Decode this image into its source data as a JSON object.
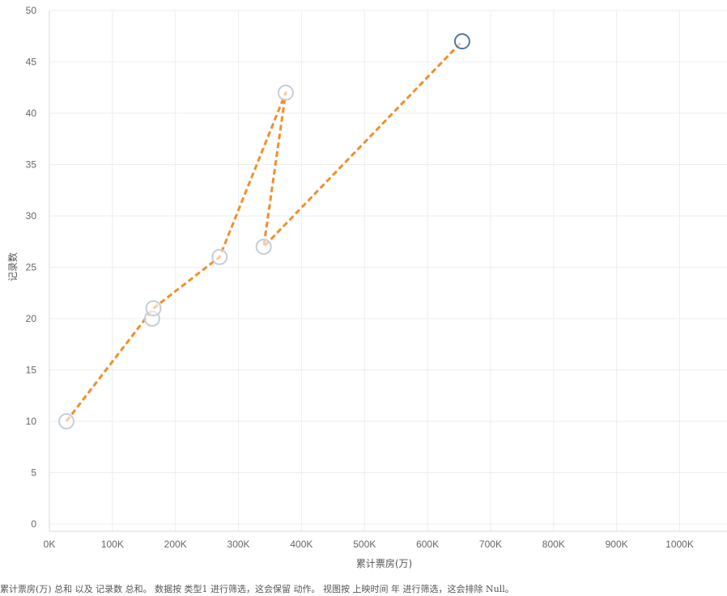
{
  "chart_data": {
    "type": "scatter",
    "xlabel": "累计票房(万)",
    "ylabel": "记录数",
    "xlim": [
      0,
      1070000
    ],
    "ylim": [
      0,
      50
    ],
    "x_ticks": [
      0,
      100000,
      200000,
      300000,
      400000,
      500000,
      600000,
      700000,
      800000,
      900000,
      1000000
    ],
    "x_tick_labels": [
      "0K",
      "100K",
      "200K",
      "300K",
      "400K",
      "500K",
      "600K",
      "700K",
      "800K",
      "900K",
      "1000K"
    ],
    "y_ticks": [
      0,
      5,
      10,
      15,
      20,
      25,
      30,
      35,
      40,
      45,
      50
    ],
    "y_tick_labels": [
      "0",
      "5",
      "10",
      "15",
      "20",
      "25",
      "30",
      "35",
      "40",
      "45",
      "50"
    ],
    "grid": true,
    "points": [
      {
        "x": 27000,
        "y": 10,
        "highlighted": false
      },
      {
        "x": 163000,
        "y": 20,
        "highlighted": false
      },
      {
        "x": 165000,
        "y": 21,
        "highlighted": false
      },
      {
        "x": 270000,
        "y": 26,
        "highlighted": false
      },
      {
        "x": 375000,
        "y": 42,
        "highlighted": false
      },
      {
        "x": 340000,
        "y": 27,
        "highlighted": false
      },
      {
        "x": 655000,
        "y": 47,
        "highlighted": true
      }
    ],
    "trail_path": [
      [
        27000,
        10
      ],
      [
        165000,
        21
      ],
      [
        270000,
        26
      ],
      [
        375000,
        42
      ],
      [
        340000,
        27
      ],
      [
        655000,
        47
      ]
    ],
    "colors": {
      "point_default": "#c5cdd8",
      "point_highlight": "#4e79a7",
      "trail": "#f28e2b",
      "grid": "#eeeeee"
    }
  },
  "caption": "累计票房(万) 总和 以及 记录数 总和。 数据按 类型1 进行筛选，这会保留 动作。 视图按 上映时间 年 进行筛选，这会排除 Null。"
}
